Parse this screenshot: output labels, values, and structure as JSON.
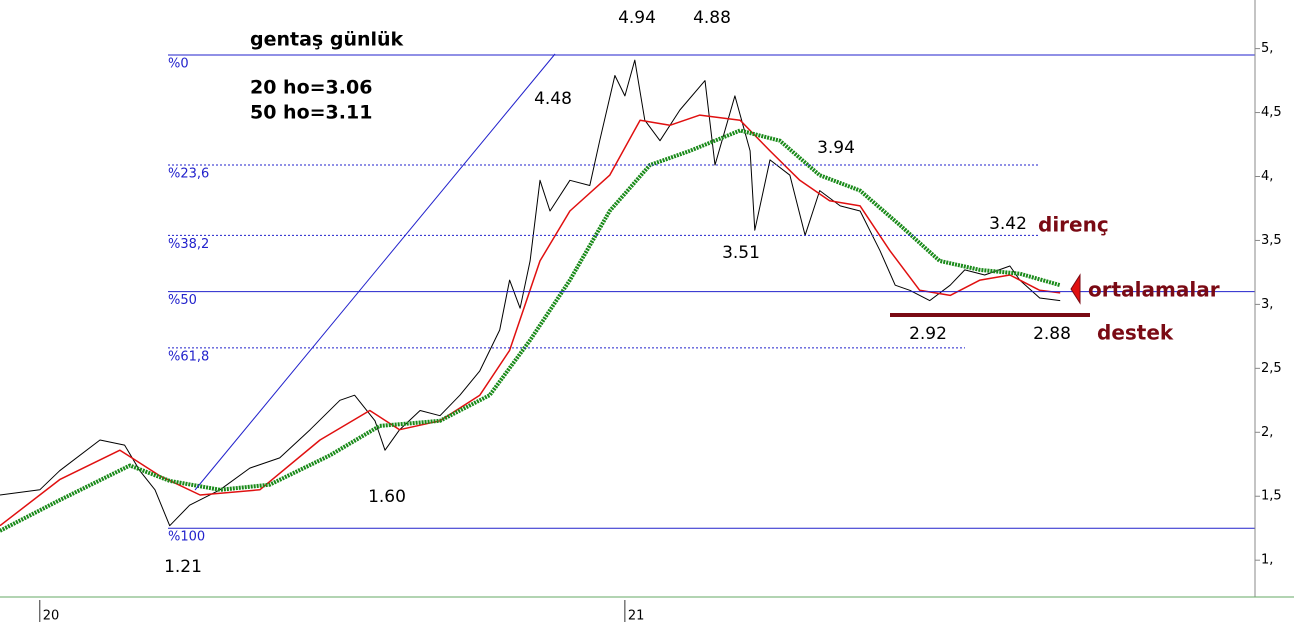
{
  "chart_data": {
    "type": "line",
    "title": "gentaş günlük",
    "subtitle_lines": [
      "20 ho=3.06",
      "50 ho=3.11"
    ],
    "xlim": [
      2019.932,
      2022.077
    ],
    "xticks": [
      {
        "value": 2020,
        "label": "20"
      },
      {
        "value": 2021,
        "label": "21"
      }
    ],
    "ylim": [
      0.72,
      5.38
    ],
    "yticks": [
      {
        "value": 1,
        "label": "1,"
      },
      {
        "value": 1.5,
        "label": "1,5"
      },
      {
        "value": 2,
        "label": "2,"
      },
      {
        "value": 2.5,
        "label": "2,5"
      },
      {
        "value": 3,
        "label": "3,"
      },
      {
        "value": 3.5,
        "label": "3,5"
      },
      {
        "value": 4,
        "label": "4,"
      },
      {
        "value": 4.5,
        "label": "4,5"
      },
      {
        "value": 5,
        "label": "5,"
      }
    ],
    "series": [
      {
        "color": "#000000",
        "style": "solid",
        "x": [
          2019.932,
          2020.0,
          2020.034,
          2020.103,
          2020.145,
          2020.171,
          2020.197,
          2020.222,
          2020.256,
          2020.308,
          2020.359,
          2020.41,
          2020.462,
          2020.513,
          2020.538,
          2020.573,
          2020.59,
          2020.615,
          2020.65,
          2020.684,
          2020.718,
          2020.752,
          2020.786,
          2020.803,
          2020.821,
          2020.838,
          2020.855,
          2020.872,
          2020.906,
          2020.94,
          2020.957,
          2020.983,
          2021.0,
          2021.017,
          2021.034,
          2021.06,
          2021.094,
          2021.137,
          2021.154,
          2021.188,
          2021.214,
          2021.222,
          2021.248,
          2021.282,
          2021.308,
          2021.333,
          2021.368,
          2021.402,
          2021.436,
          2021.462,
          2021.487,
          2021.521,
          2021.556,
          2021.581,
          2021.615,
          2021.658,
          2021.675,
          2021.709,
          2021.744
        ],
        "values": [
          1.51,
          1.55,
          1.7,
          1.94,
          1.9,
          1.7,
          1.55,
          1.27,
          1.43,
          1.55,
          1.72,
          1.8,
          2.02,
          2.25,
          2.29,
          2.09,
          1.86,
          2.02,
          2.17,
          2.13,
          2.29,
          2.48,
          2.8,
          3.19,
          2.97,
          3.34,
          3.97,
          3.73,
          3.97,
          3.93,
          4.28,
          4.79,
          4.63,
          4.91,
          4.44,
          4.28,
          4.52,
          4.75,
          4.09,
          4.63,
          4.2,
          3.58,
          4.13,
          4.01,
          3.54,
          3.89,
          3.77,
          3.73,
          3.42,
          3.15,
          3.11,
          3.03,
          3.15,
          3.27,
          3.23,
          3.3,
          3.19,
          3.05,
          3.03
        ]
      },
      {
        "color": "#e01010",
        "style": "solid",
        "x": [
          2019.932,
          2020.034,
          2020.137,
          2020.205,
          2020.274,
          2020.376,
          2020.479,
          2020.564,
          2020.615,
          2020.684,
          2020.752,
          2020.803,
          2020.855,
          2020.906,
          2020.974,
          2021.026,
          2021.077,
          2021.128,
          2021.197,
          2021.248,
          2021.299,
          2021.35,
          2021.402,
          2021.453,
          2021.504,
          2021.556,
          2021.607,
          2021.658,
          2021.709,
          2021.744
        ],
        "values": [
          1.27,
          1.63,
          1.86,
          1.66,
          1.51,
          1.55,
          1.94,
          2.17,
          2.02,
          2.09,
          2.29,
          2.64,
          3.34,
          3.73,
          4.01,
          4.44,
          4.4,
          4.48,
          4.44,
          4.2,
          3.97,
          3.81,
          3.77,
          3.42,
          3.11,
          3.07,
          3.19,
          3.23,
          3.11,
          3.09
        ]
      },
      {
        "color": "#1a8a1a",
        "style": "dotted",
        "x": [
          2019.932,
          2020.034,
          2020.154,
          2020.222,
          2020.308,
          2020.393,
          2020.496,
          2020.581,
          2020.684,
          2020.769,
          2020.838,
          2020.906,
          2020.974,
          2021.043,
          2021.111,
          2021.197,
          2021.265,
          2021.333,
          2021.402,
          2021.47,
          2021.538,
          2021.607,
          2021.675,
          2021.744
        ],
        "values": [
          1.23,
          1.47,
          1.74,
          1.62,
          1.55,
          1.59,
          1.82,
          2.05,
          2.09,
          2.29,
          2.72,
          3.19,
          3.73,
          4.09,
          4.2,
          4.36,
          4.28,
          4.01,
          3.89,
          3.62,
          3.34,
          3.27,
          3.24,
          3.15
        ]
      }
    ],
    "fib_levels": [
      {
        "label": "%0",
        "value": 4.95,
        "style": "solid"
      },
      {
        "label": "%23,6",
        "value": 4.09,
        "style": "dashed"
      },
      {
        "label": "%38,2",
        "value": 3.54,
        "style": "dashed"
      },
      {
        "label": "%50",
        "value": 3.1,
        "style": "solid"
      },
      {
        "label": "%61,8",
        "value": 2.66,
        "style": "dashed"
      },
      {
        "label": "%100",
        "value": 1.25,
        "style": "solid"
      }
    ],
    "annotations": [
      "4.94",
      "4.88",
      "4.48",
      "3.94",
      "3.51",
      "3.42",
      "2.92",
      "2.88",
      "1.60",
      "1.21"
    ],
    "labels": [
      "direnç",
      "ortalamalar",
      "destek"
    ]
  }
}
